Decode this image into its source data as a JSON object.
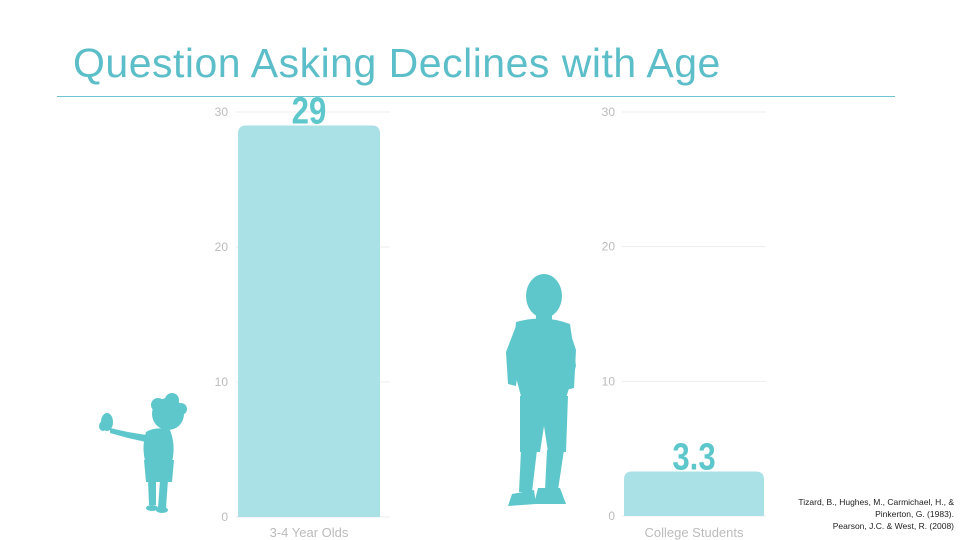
{
  "title": "Question Asking Declines with Age",
  "colors": {
    "title": "#5bbec8",
    "bar": "#a9e1e6",
    "silhouette": "#5ec7cc",
    "value_label": "#5ec7cc",
    "tick_text": "#bbbbbb",
    "gridline": "#eeeeee"
  },
  "citation": [
    "Tizard, B., Hughes, M., Carmichael, H., &",
    "Pinkerton, G. (1983).",
    "Pearson, J.C. & West, R. (2008)"
  ],
  "chart_data": [
    {
      "type": "bar",
      "categories": [
        "3-4 Year Olds"
      ],
      "values": [
        29
      ],
      "data_labels": [
        "29"
      ],
      "ylim": [
        0,
        30
      ],
      "yticks": [
        "0",
        "10",
        "20",
        "30"
      ],
      "grid": true,
      "decoration": "toddler-silhouette-icon"
    },
    {
      "type": "bar",
      "categories": [
        "College Students"
      ],
      "values": [
        3.3
      ],
      "data_labels": [
        "3.3"
      ],
      "ylim": [
        0,
        30
      ],
      "yticks": [
        "0",
        "10",
        "20",
        "30"
      ],
      "grid": true,
      "decoration": "child-silhouette-icon"
    }
  ]
}
